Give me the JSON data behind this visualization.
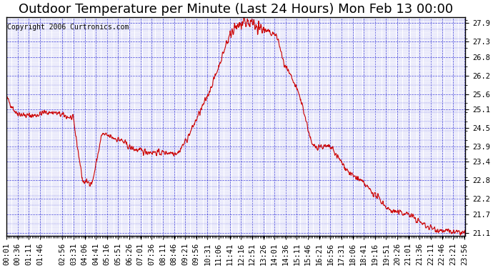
{
  "title": "Outdoor Temperature per Minute (Last 24 Hours) Mon Feb 13 00:00",
  "copyright": "Copyright 2006 Curtronics.com",
  "background_color": "#ffffff",
  "plot_bg_color": "#ffffff",
  "line_color": "#cc0000",
  "grid_color": "#0000cc",
  "ylabel_right": true,
  "y_ticks": [
    21.1,
    21.7,
    22.2,
    22.8,
    23.4,
    23.9,
    24.5,
    25.1,
    25.6,
    26.2,
    26.8,
    27.3,
    27.9
  ],
  "ylim": [
    21.0,
    28.1
  ],
  "x_labels": [
    "00:01",
    "00:36",
    "01:11",
    "01:46",
    "02:56",
    "03:31",
    "04:06",
    "04:41",
    "05:16",
    "05:51",
    "06:26",
    "07:01",
    "07:36",
    "08:11",
    "08:46",
    "09:21",
    "09:56",
    "10:31",
    "11:06",
    "11:41",
    "12:16",
    "12:51",
    "13:26",
    "14:01",
    "14:36",
    "15:11",
    "15:46",
    "16:21",
    "16:56",
    "17:31",
    "18:06",
    "18:41",
    "19:16",
    "19:51",
    "20:26",
    "21:01",
    "21:36",
    "22:11",
    "22:46",
    "23:21",
    "23:56"
  ],
  "title_fontsize": 13,
  "copyright_fontsize": 7,
  "tick_fontsize": 7.5
}
